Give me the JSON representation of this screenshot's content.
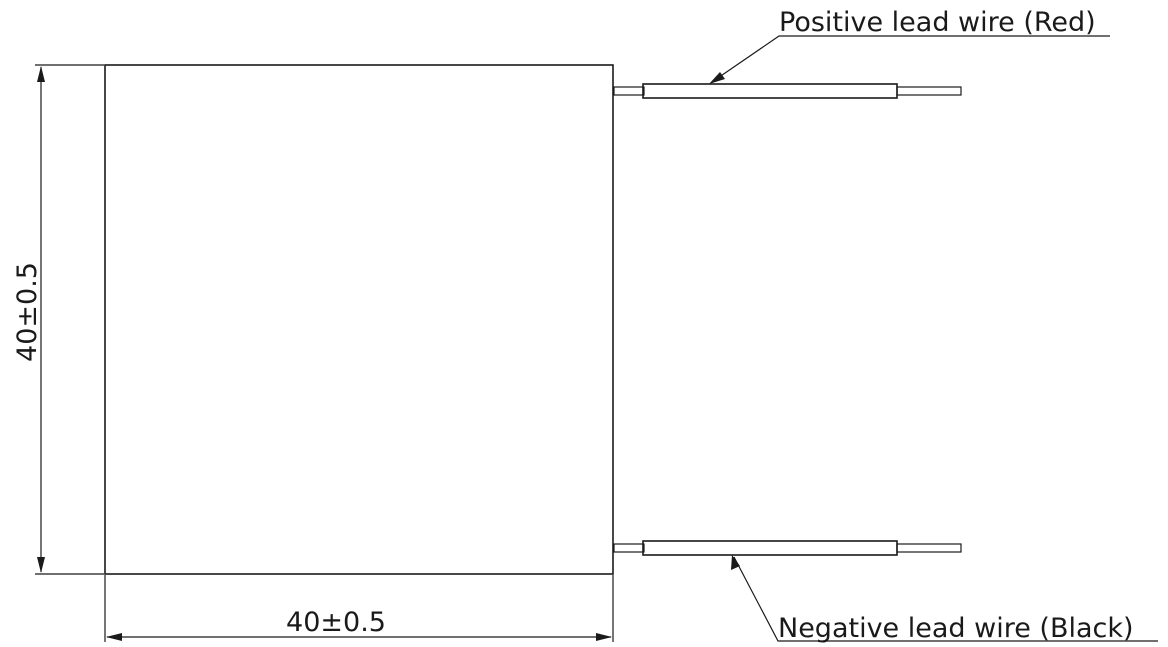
{
  "drawing": {
    "width_dimension": "40±0.5",
    "height_dimension": "40±0.5",
    "positive_lead_label": "Positive lead wire (Red)",
    "negative_lead_label": "Negative lead wire (Black)"
  }
}
